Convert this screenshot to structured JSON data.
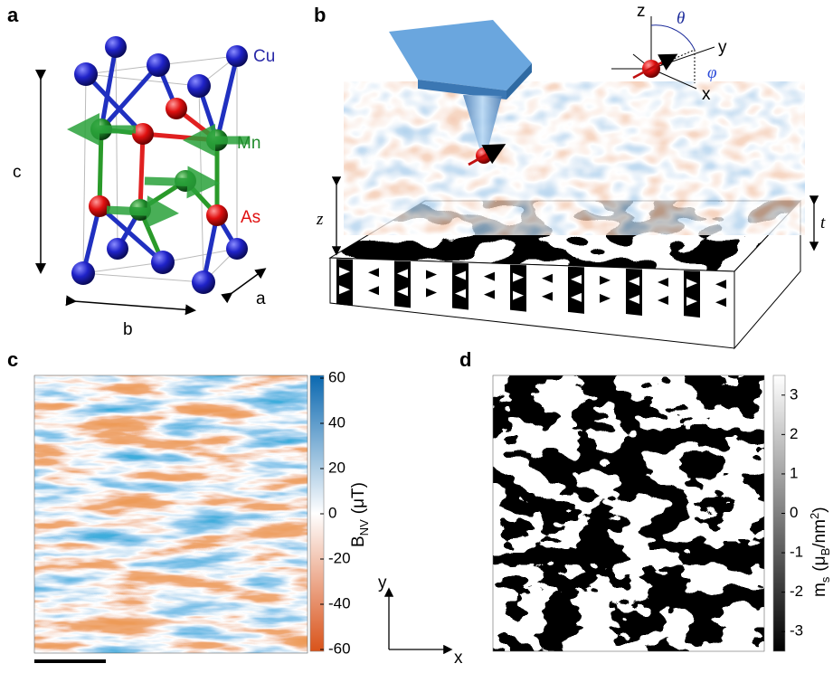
{
  "panel_labels": [
    "a",
    "b",
    "c",
    "d"
  ],
  "crystal": {
    "atoms": [
      "Cu",
      "Mn",
      "As"
    ],
    "axes": [
      "c",
      "b",
      "a"
    ]
  },
  "setup": {
    "z": "z",
    "t": "t",
    "theta": "θ",
    "phi": "φ",
    "frame": [
      "z",
      "y",
      "x"
    ]
  },
  "colorbar_field": {
    "label": [
      "B",
      "NV",
      "(μT)"
    ],
    "lim": [
      -60,
      60
    ],
    "ticks": [
      60,
      40,
      20,
      0,
      -20,
      -40,
      -60
    ]
  },
  "colorbar_moment": {
    "label": [
      "m",
      "s",
      "(μ",
      "B",
      "/nm",
      "2",
      ")"
    ],
    "lim": [
      -3.5,
      3.5
    ],
    "ticks": [
      3,
      2,
      1,
      0,
      -1,
      -2,
      -3
    ]
  },
  "map_axes": [
    "y",
    "x"
  ]
}
